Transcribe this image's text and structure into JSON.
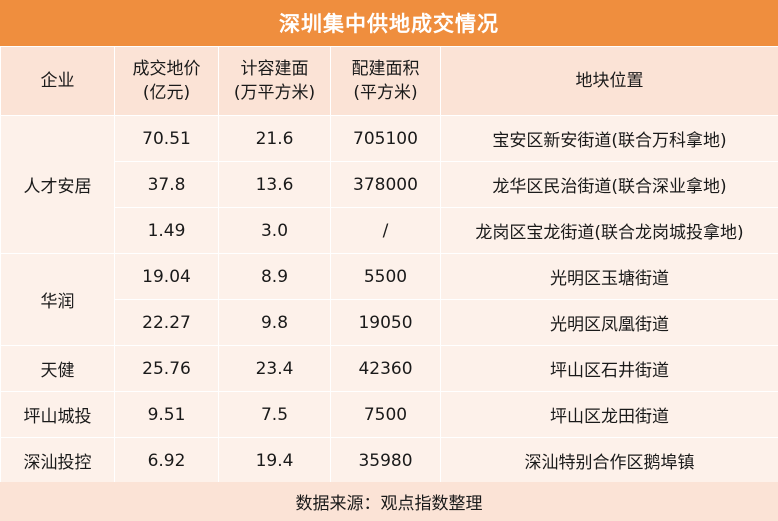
{
  "title": "深圳集中供地成交情况",
  "headers": [
    [
      "企业"
    ],
    [
      "成交地价",
      "(亿元)"
    ],
    [
      "计容建面",
      "(万平方米)"
    ],
    [
      "配建面积",
      "(平方米)"
    ],
    [
      "地块位置"
    ]
  ],
  "groups": [
    {
      "company": "人才安居",
      "rows": [
        {
          "price": "70.51",
          "area": "21.6",
          "supporting": "705100",
          "location": "宝安区新安街道(联合万科拿地)"
        },
        {
          "price": "37.8",
          "area": "13.6",
          "supporting": "378000",
          "location": "龙华区民治街道(联合深业拿地)"
        },
        {
          "price": "1.49",
          "area": "3.0",
          "supporting": "/",
          "location": "龙岗区宝龙街道(联合龙岗城投拿地)"
        }
      ]
    },
    {
      "company": "华润",
      "rows": [
        {
          "price": "19.04",
          "area": "8.9",
          "supporting": "5500",
          "location": "光明区玉塘街道"
        },
        {
          "price": "22.27",
          "area": "9.8",
          "supporting": "19050",
          "location": "光明区凤凰街道"
        }
      ]
    },
    {
      "company": "天健",
      "rows": [
        {
          "price": "25.76",
          "area": "23.4",
          "supporting": "42360",
          "location": "坪山区石井街道"
        }
      ]
    },
    {
      "company": "坪山城投",
      "rows": [
        {
          "price": "9.51",
          "area": "7.5",
          "supporting": "7500",
          "location": "坪山区龙田街道"
        }
      ]
    },
    {
      "company": "深汕投控",
      "rows": [
        {
          "price": "6.92",
          "area": "19.4",
          "supporting": "35980",
          "location": "深汕特别合作区鹅埠镇"
        }
      ]
    }
  ],
  "footer": "数据来源：观点指数整理"
}
